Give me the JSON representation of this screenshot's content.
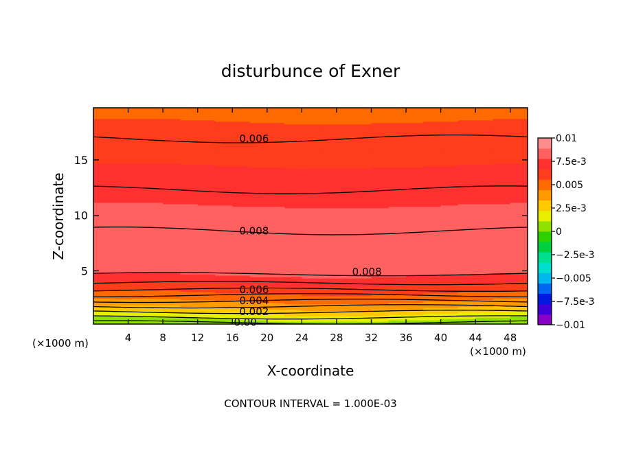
{
  "chart_data": {
    "type": "heatmap",
    "title": "disturbunce of Exner",
    "xlabel": "X-coordinate",
    "ylabel": "Z-coordinate",
    "x_unit": "(×1000 m)",
    "footer": "CONTOUR INTERVAL = 1.000E-03",
    "xlim": [
      0,
      50
    ],
    "ylim": [
      0.2,
      19.7
    ],
    "x_ticks": [
      4,
      8,
      12,
      16,
      20,
      24,
      28,
      32,
      36,
      40,
      44,
      48
    ],
    "x_tick_labels": [
      "4",
      "8",
      "12",
      "16",
      "20",
      "24",
      "28",
      "32",
      "36",
      "40",
      "44",
      "48"
    ],
    "y_ticks": [
      5,
      10,
      15
    ],
    "y_tick_labels": [
      "5",
      "10",
      "15"
    ],
    "colorbar": {
      "min": -0.01,
      "max": 0.01,
      "labels": [
        "0.01",
        "7.5e-3",
        "0.005",
        "2.5e-3",
        "0",
        "−2.5e-3",
        "−0.005",
        "−7.5e-3",
        "−0.01"
      ],
      "colors": [
        "#8a00c8",
        "#4000d8",
        "#0018e0",
        "#0068f0",
        "#00b8f0",
        "#00e0d0",
        "#00e090",
        "#00d040",
        "#30d000",
        "#90e000",
        "#e8f000",
        "#ffc800",
        "#ff9a00",
        "#ff6a00",
        "#ff3c1c",
        "#ff3030",
        "#ff6060",
        "#ff8c8c"
      ]
    },
    "bands": [
      {
        "z": 0.2,
        "value": 0.0
      },
      {
        "z": 0.7,
        "value": 0.0012
      },
      {
        "z": 1.3,
        "value": 0.0025
      },
      {
        "z": 1.9,
        "value": 0.0038
      },
      {
        "z": 2.6,
        "value": 0.005
      },
      {
        "z": 3.4,
        "value": 0.006
      },
      {
        "z": 4.3,
        "value": 0.0075
      },
      {
        "z": 5.5,
        "value": 0.0085
      },
      {
        "z": 7.5,
        "value": 0.0088
      },
      {
        "z": 9.5,
        "value": 0.0082
      },
      {
        "z": 12.5,
        "value": 0.0073
      },
      {
        "z": 15.0,
        "value": 0.0065
      },
      {
        "z": 17.0,
        "value": 0.006
      },
      {
        "z": 19.7,
        "value": 0.0052
      }
    ],
    "contours": [
      {
        "level": 0.0,
        "z": 0.35
      },
      {
        "level": 0.001,
        "z": 0.8
      },
      {
        "level": 0.002,
        "z": 1.3
      },
      {
        "level": 0.003,
        "z": 1.8
      },
      {
        "level": 0.004,
        "z": 2.3
      },
      {
        "level": 0.005,
        "z": 2.8
      },
      {
        "level": 0.006,
        "z": 3.3
      },
      {
        "level": 0.007,
        "z": 3.9
      },
      {
        "level": 0.008,
        "z": 4.7
      },
      {
        "level": 0.008,
        "z": 8.6
      },
      {
        "level": 0.007,
        "z": 12.3
      },
      {
        "level": 0.006,
        "z": 16.9
      }
    ],
    "contour_labels": [
      {
        "text": "0.006",
        "x": 18.5,
        "z": 16.9
      },
      {
        "text": "0.008",
        "x": 18.5,
        "z": 8.6
      },
      {
        "text": "0.008",
        "x": 31.5,
        "z": 4.9
      },
      {
        "text": "0.006",
        "x": 18.5,
        "z": 3.3
      },
      {
        "text": "0.004",
        "x": 18.5,
        "z": 2.3
      },
      {
        "text": "0.002",
        "x": 18.5,
        "z": 1.3
      },
      {
        "text": "0.00",
        "x": 17.5,
        "z": 0.35
      }
    ]
  }
}
